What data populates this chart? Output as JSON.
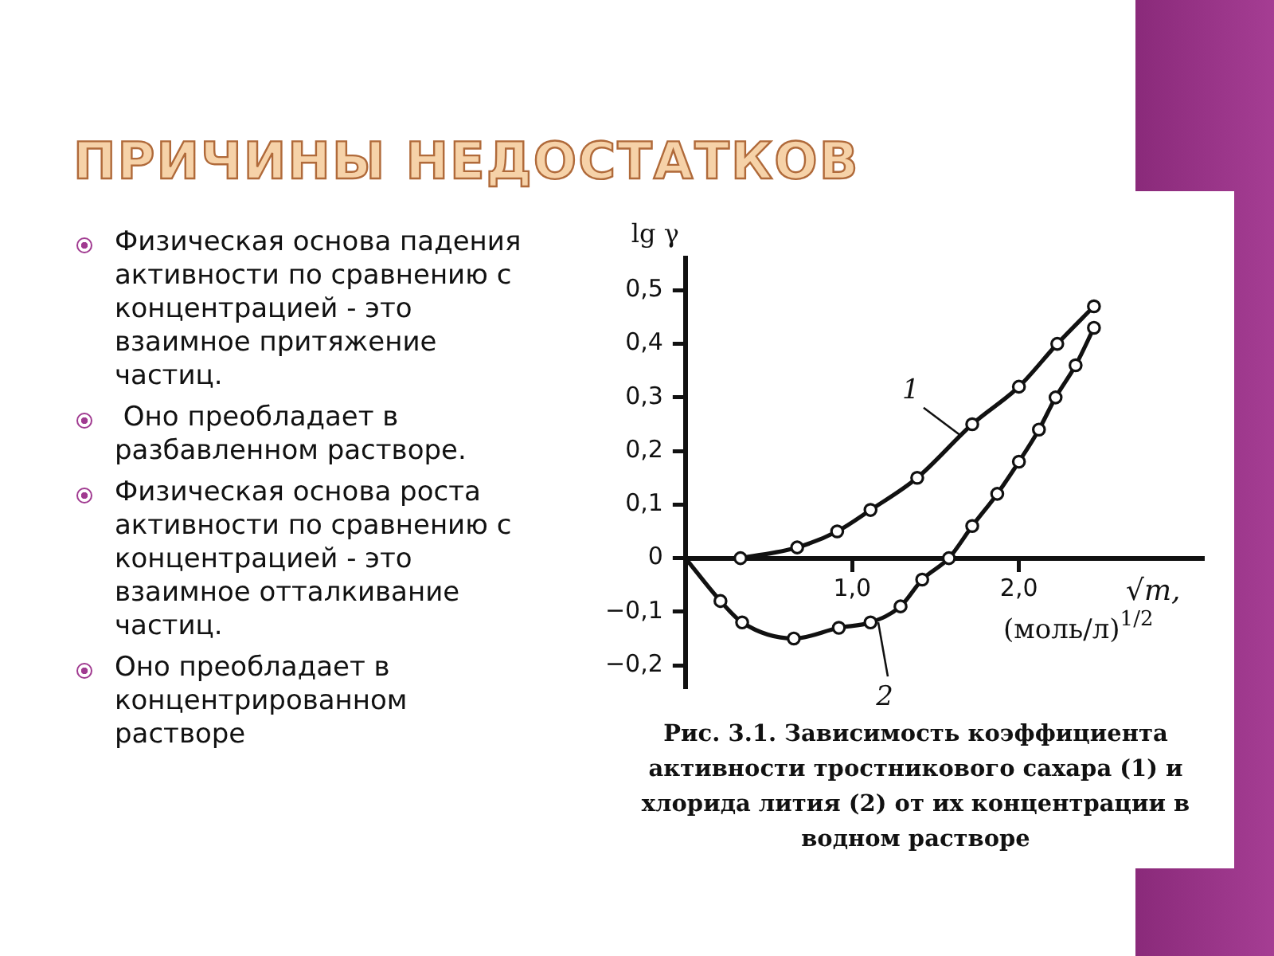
{
  "chart_data": {
    "type": "line",
    "title": "ПРИЧИНЫ НЕДОСТАТКОВ",
    "xlabel": "√m, (моль/л)$^{1/2}$",
    "ylabel": "lg γ",
    "annotations": [
      "Физическая основа падения активности по сравнению с концентрацией - это взаимное притяжение частиц.",
      " Оно преобладает в разбавленном растворе.",
      "Физическая основа роста активности по сравнению с концентрацией - это взаимное отталкивание частиц.",
      "Оно преобладает в концентрированном растворе",
      "Рис. 3.1. Зависимость коэффициента активности тростникового сахара (1) и хлорида лития (2) от их концентрации в водном растворе"
    ],
    "xlim": [
      0,
      3.1
    ],
    "ylim": [
      -0.24,
      0.56
    ],
    "xticks": [
      {
        "value": 1,
        "label": "1,0"
      },
      {
        "value": 2,
        "label": "2,0"
      }
    ],
    "yticks": [
      {
        "value": -0.2,
        "label": "−0,2"
      },
      {
        "value": -0.1,
        "label": "−0,1"
      },
      0,
      {
        "value": 0.1,
        "label": "0,1"
      },
      {
        "value": 0.2,
        "label": "0,2"
      },
      {
        "value": 0.3,
        "label": "0,3"
      },
      {
        "value": 0.4,
        "label": "0,4"
      },
      {
        "value": 0.5,
        "label": "0,5"
      }
    ],
    "marker": "circle",
    "line_style": "solid",
    "series": [
      {
        "name": "1",
        "color": "#111111",
        "x": [
          0.33,
          0.67,
          0.91,
          1.11,
          1.39,
          1.72,
          2.0,
          2.23,
          2.45
        ],
        "values": [
          0.0,
          0.02,
          0.05,
          0.09,
          0.15,
          0.25,
          0.32,
          0.4,
          0.47
        ]
      },
      {
        "name": "2",
        "color": "#111111",
        "x": [
          0,
          0.21,
          0.34,
          0.65,
          0.92,
          1.11,
          1.29,
          1.42,
          1.58,
          1.72,
          1.87,
          2.0,
          2.12,
          2.22,
          2.34,
          2.45
        ],
        "values": [
          0,
          -0.08,
          -0.12,
          -0.15,
          -0.13,
          -0.12,
          -0.09,
          -0.04,
          0.0,
          0.06,
          0.12,
          0.18,
          0.24,
          0.3,
          0.36,
          0.43
        ]
      }
    ]
  }
}
